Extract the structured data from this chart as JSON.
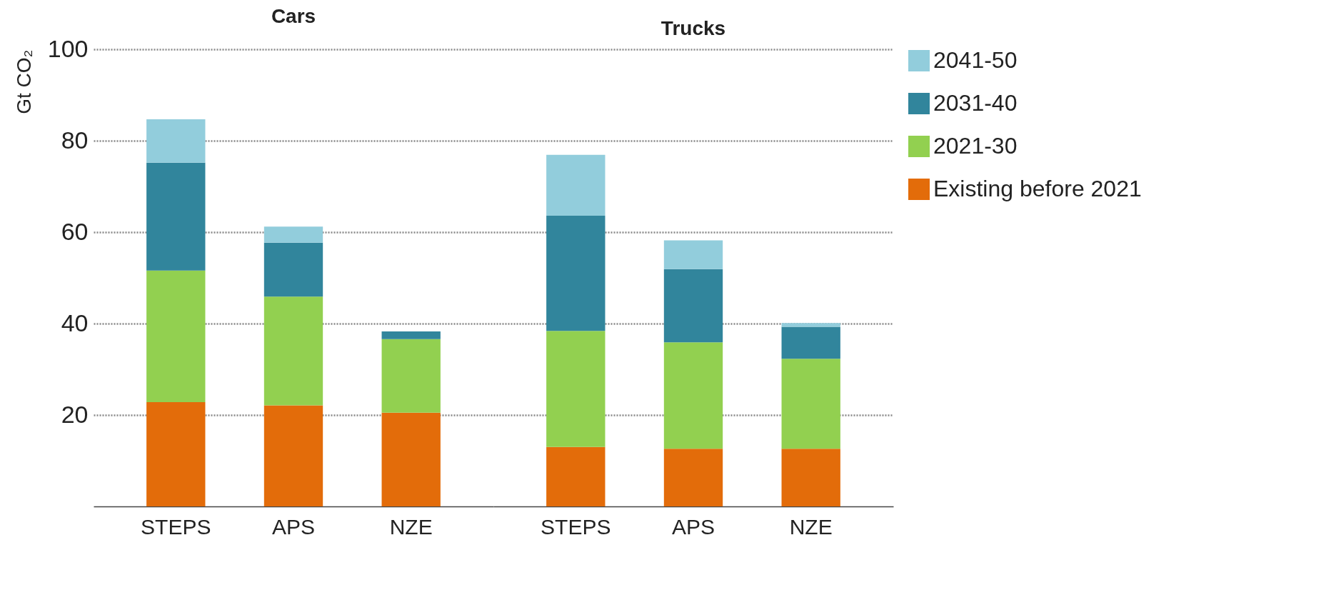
{
  "chart_data": [
    {
      "type": "bar",
      "title": "Cars",
      "ylabel": "Gt CO₂",
      "categories": [
        "STEPS",
        "APS",
        "NZE"
      ],
      "stacked": true,
      "ylim": [
        0,
        100
      ],
      "yticks": [
        20,
        40,
        60,
        80,
        100
      ],
      "grid": "y",
      "legend": "right",
      "series": [
        {
          "name": "Existing before 2021",
          "color": "#e36c0a",
          "values": [
            22.8,
            22.1,
            20.5
          ]
        },
        {
          "name": "2021-30",
          "color": "#92d050",
          "values": [
            28.8,
            23.8,
            16.1
          ]
        },
        {
          "name": "2031-40",
          "color": "#31859c",
          "values": [
            23.6,
            11.8,
            1.7
          ]
        },
        {
          "name": "2041-50",
          "color": "#92cddc",
          "values": [
            9.5,
            3.5,
            0
          ]
        }
      ]
    },
    {
      "type": "bar",
      "title": "Trucks",
      "categories": [
        "STEPS",
        "APS",
        "NZE"
      ],
      "stacked": true,
      "ylim": [
        0,
        100
      ],
      "yticks": [
        20,
        40,
        60,
        80,
        100
      ],
      "grid": "y",
      "legend": "right",
      "tick_labels": "x",
      "series": [
        {
          "name": "Existing before 2021",
          "color": "#e36c0a",
          "values": [
            13.0,
            12.6,
            12.6
          ]
        },
        {
          "name": "2021-30",
          "color": "#92d050",
          "values": [
            25.4,
            23.3,
            19.7
          ]
        },
        {
          "name": "2031-40",
          "color": "#31859c",
          "values": [
            25.2,
            16.0,
            7.0
          ]
        },
        {
          "name": "2041-50",
          "color": "#92cddc",
          "values": [
            13.3,
            6.3,
            0.8
          ]
        }
      ]
    }
  ]
}
